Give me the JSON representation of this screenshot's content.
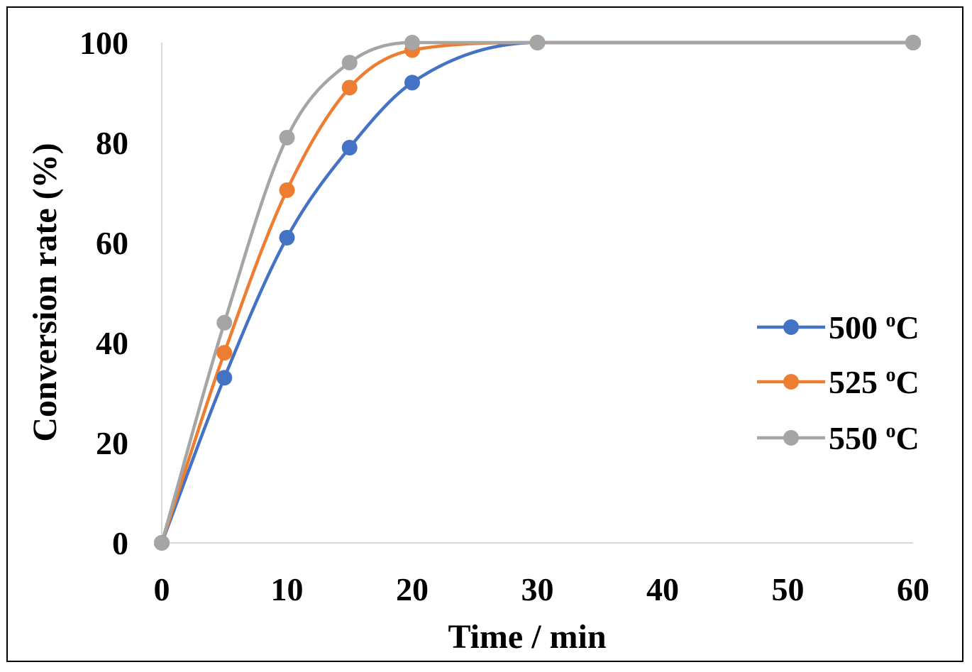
{
  "chart_data": {
    "type": "line",
    "xlabel": "Time / min",
    "ylabel": "Conversion rate (%)",
    "xlim": [
      0,
      60
    ],
    "ylim": [
      0,
      100
    ],
    "x_ticks": [
      "0",
      "10",
      "20",
      "30",
      "40",
      "50",
      "60"
    ],
    "y_ticks": [
      "0",
      "20",
      "40",
      "60",
      "80",
      "100"
    ],
    "grid": false,
    "legend_position": "right",
    "x": [
      0,
      5,
      10,
      15,
      20,
      30,
      60
    ],
    "series": [
      {
        "name": "500 ⁰C",
        "label_num": "500",
        "label_sup": "o",
        "label_unit": "C",
        "color": "#4472c4",
        "values": [
          0,
          33,
          61,
          79,
          92,
          100,
          100
        ]
      },
      {
        "name": "525 ⁰C",
        "label_num": "525",
        "label_sup": "o",
        "label_unit": "C",
        "color": "#ed7d31",
        "values": [
          0,
          38,
          70.5,
          91,
          98.5,
          100,
          100
        ]
      },
      {
        "name": "550 ⁰C",
        "label_num": "550",
        "label_sup": "o",
        "label_unit": "C",
        "color": "#a5a5a5",
        "values": [
          0,
          44,
          81,
          96,
          100,
          100,
          100
        ]
      }
    ]
  }
}
